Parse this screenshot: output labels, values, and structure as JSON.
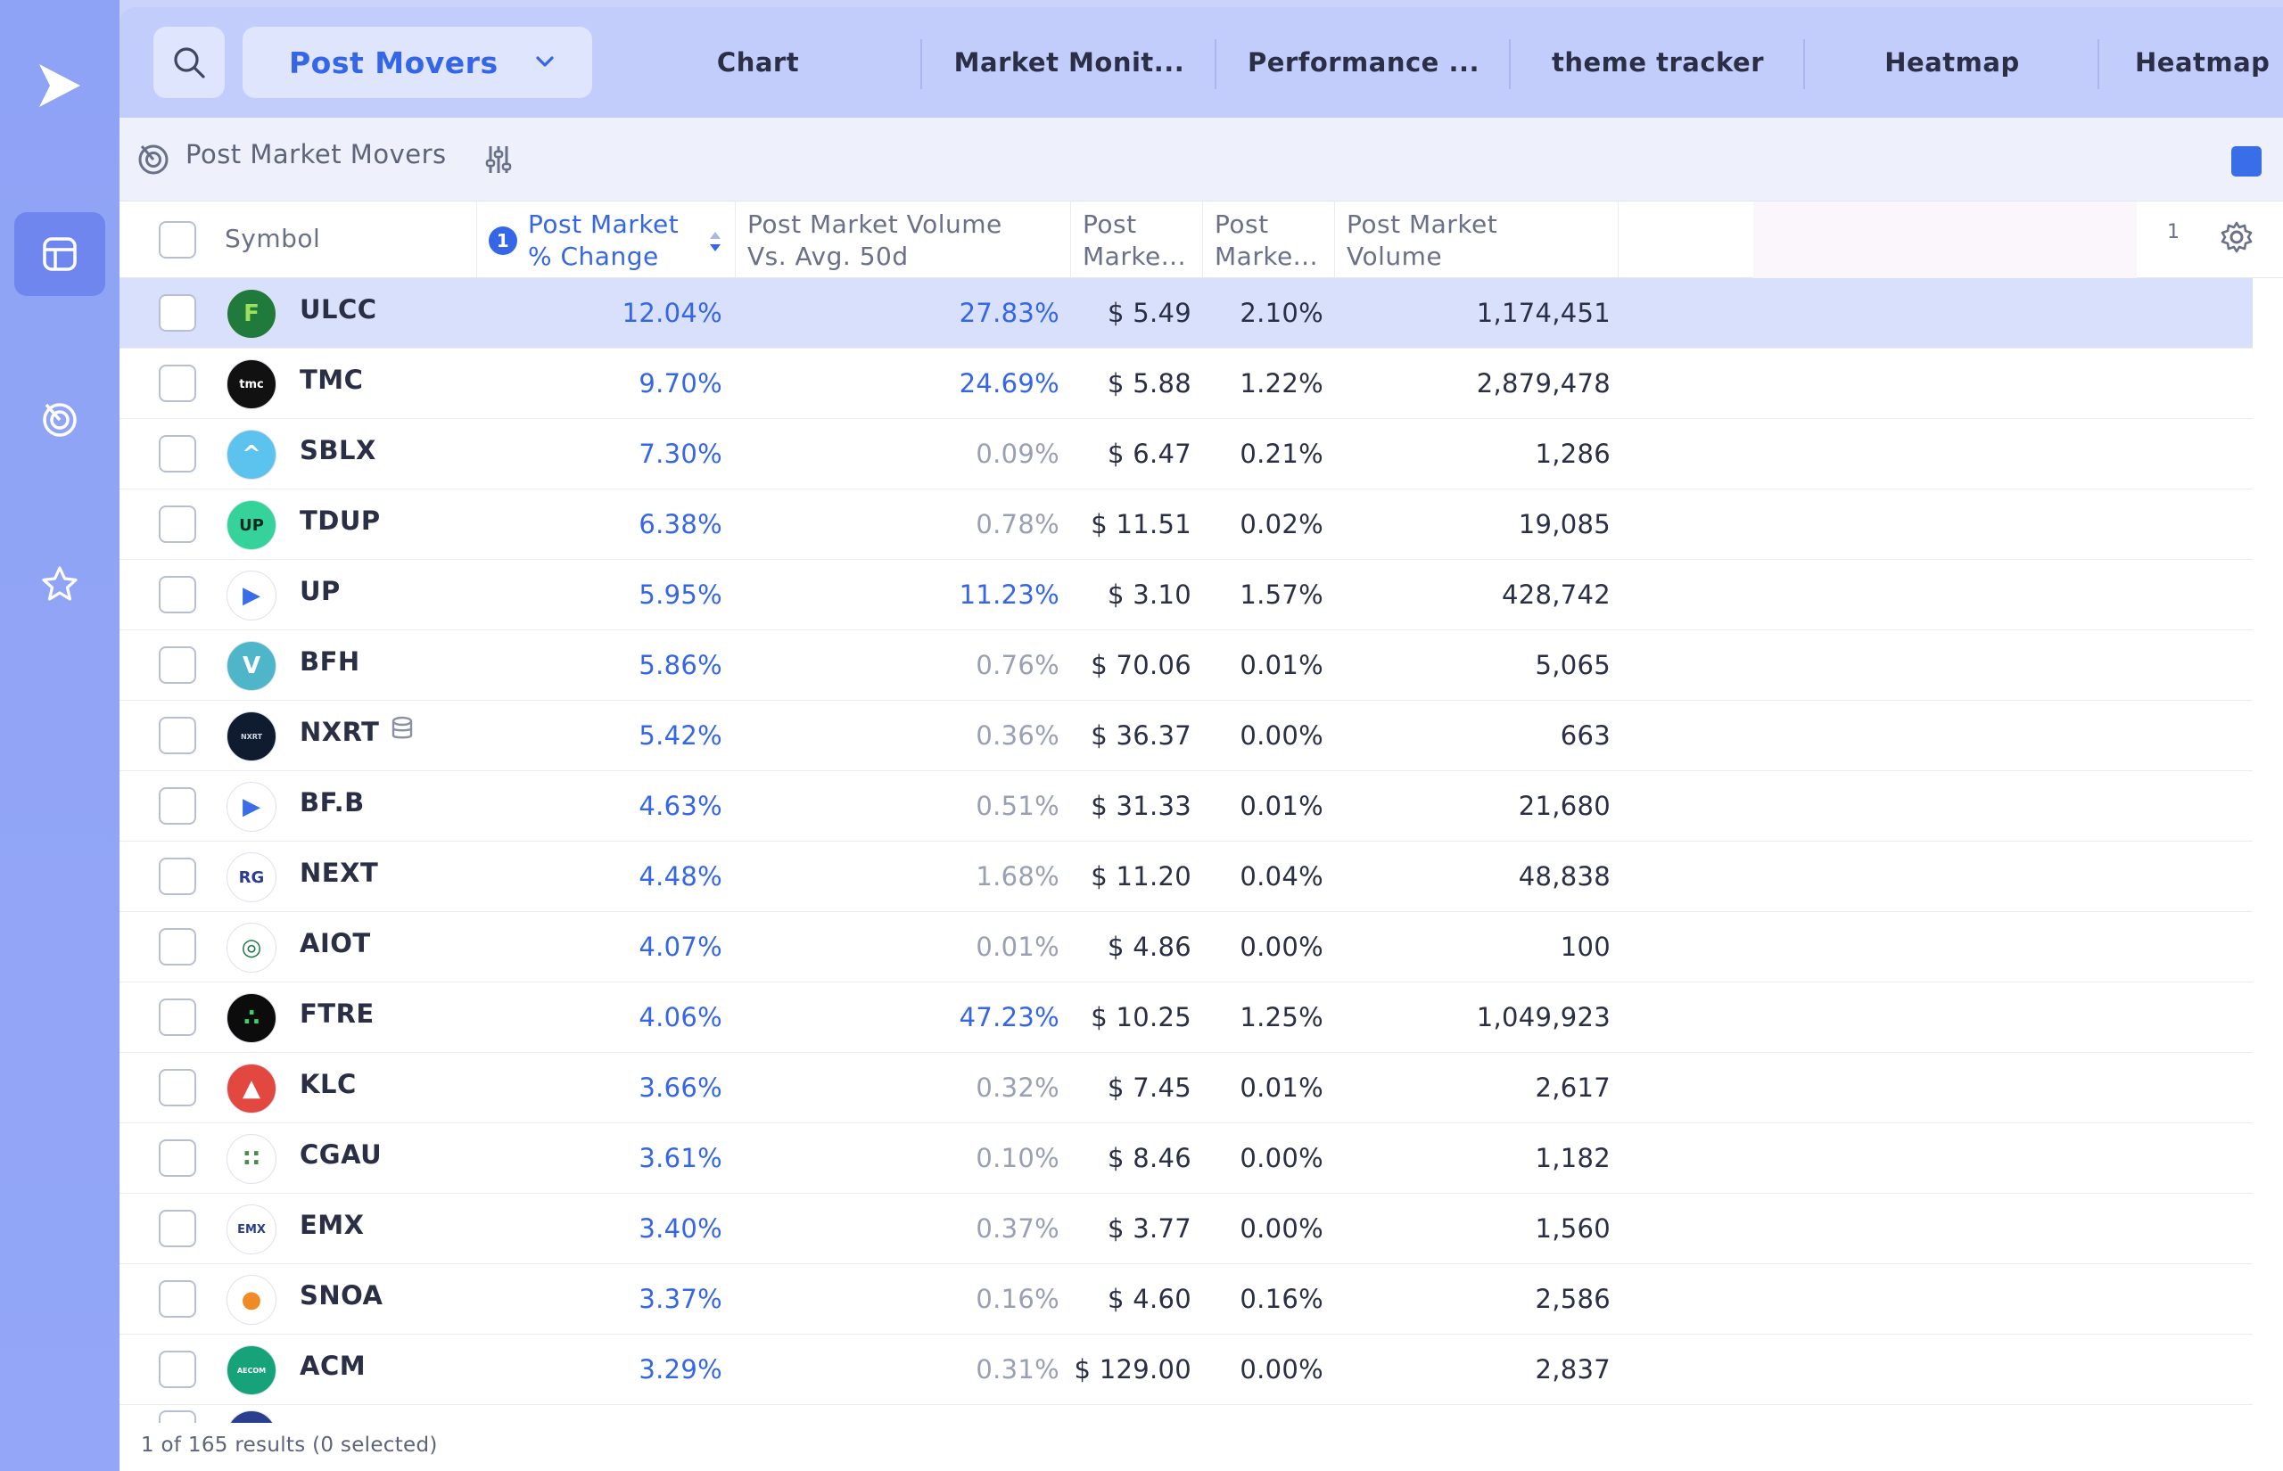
{
  "sidebar": {
    "icons": [
      "logo-icon",
      "layout-icon",
      "radar-icon",
      "star-icon"
    ],
    "active": "layout-icon"
  },
  "topbar": {
    "view_label": "Post Movers",
    "tabs": [
      "Chart",
      "Market Monit...",
      "Performance ...",
      "theme tracker",
      "Heatmap",
      "Heatmap"
    ]
  },
  "panel": {
    "title": "Post Market Movers"
  },
  "table": {
    "headers": {
      "symbol": "Symbol",
      "change_1": "Post Market",
      "change_2": "% Change",
      "sort_index": "1",
      "volavg_1": "Post Market Volume",
      "volavg_2": "Vs. Avg. 50d",
      "price_1": "Post",
      "price_2": "Marke...",
      "pct_1": "Post",
      "pct_2": "Marke...",
      "pvol_1": "Post Market",
      "pvol_2": "Volume"
    },
    "page": "1",
    "rows": [
      {
        "symbol": "ULCC",
        "change": "12.04%",
        "vol_avg": "27.83%",
        "vol_hi": true,
        "price": "$ 5.49",
        "pct": "2.10%",
        "volume": "1,174,451",
        "logo_text": "F",
        "logo_bg": "#1f7a3c",
        "logo_fg": "#9be15d"
      },
      {
        "symbol": "TMC",
        "change": "9.70%",
        "vol_avg": "24.69%",
        "vol_hi": true,
        "price": "$ 5.88",
        "pct": "1.22%",
        "volume": "2,879,478",
        "logo_text": "tmc",
        "logo_bg": "#111111",
        "logo_fg": "#ffffff"
      },
      {
        "symbol": "SBLX",
        "change": "7.30%",
        "vol_avg": "0.09%",
        "vol_hi": false,
        "price": "$ 6.47",
        "pct": "0.21%",
        "volume": "1,286",
        "logo_text": "^",
        "logo_bg": "#5cc3ef",
        "logo_fg": "#ffffff"
      },
      {
        "symbol": "TDUP",
        "change": "6.38%",
        "vol_avg": "0.78%",
        "vol_hi": false,
        "price": "$ 11.51",
        "pct": "0.02%",
        "volume": "19,085",
        "logo_text": "UP",
        "logo_bg": "#35d39a",
        "logo_fg": "#0b2a1f"
      },
      {
        "symbol": "UP",
        "change": "5.95%",
        "vol_avg": "11.23%",
        "vol_hi": true,
        "price": "$ 3.10",
        "pct": "1.57%",
        "volume": "428,742",
        "logo_text": "▶",
        "logo_bg": "#ffffff",
        "logo_fg": "#3a6ee8"
      },
      {
        "symbol": "BFH",
        "change": "5.86%",
        "vol_avg": "0.76%",
        "vol_hi": false,
        "price": "$ 70.06",
        "pct": "0.01%",
        "volume": "5,065",
        "logo_text": "V",
        "logo_bg": "#4fb6c9",
        "logo_fg": "#ffffff"
      },
      {
        "symbol": "NXRT",
        "change": "5.42%",
        "vol_avg": "0.36%",
        "vol_hi": false,
        "price": "$ 36.37",
        "pct": "0.00%",
        "volume": "663",
        "logo_text": "NXRT",
        "logo_bg": "#0f1b2e",
        "logo_fg": "#cfd6e4"
      },
      {
        "symbol": "BF.B",
        "change": "4.63%",
        "vol_avg": "0.51%",
        "vol_hi": false,
        "price": "$ 31.33",
        "pct": "0.01%",
        "volume": "21,680",
        "logo_text": "▶",
        "logo_bg": "#ffffff",
        "logo_fg": "#3a6ee8"
      },
      {
        "symbol": "NEXT",
        "change": "4.48%",
        "vol_avg": "1.68%",
        "vol_hi": false,
        "price": "$ 11.20",
        "pct": "0.04%",
        "volume": "48,838",
        "logo_text": "RG",
        "logo_bg": "#ffffff",
        "logo_fg": "#2b3d8f"
      },
      {
        "symbol": "AIOT",
        "change": "4.07%",
        "vol_avg": "0.01%",
        "vol_hi": false,
        "price": "$ 4.86",
        "pct": "0.00%",
        "volume": "100",
        "logo_text": "◎",
        "logo_bg": "#ffffff",
        "logo_fg": "#1b7a4a"
      },
      {
        "symbol": "FTRE",
        "change": "4.06%",
        "vol_avg": "47.23%",
        "vol_hi": true,
        "price": "$ 10.25",
        "pct": "1.25%",
        "volume": "1,049,923",
        "logo_text": "∴",
        "logo_bg": "#0c0c0c",
        "logo_fg": "#38d36b"
      },
      {
        "symbol": "KLC",
        "change": "3.66%",
        "vol_avg": "0.32%",
        "vol_hi": false,
        "price": "$ 7.45",
        "pct": "0.01%",
        "volume": "2,617",
        "logo_text": "▲",
        "logo_bg": "#e2483f",
        "logo_fg": "#ffffff"
      },
      {
        "symbol": "CGAU",
        "change": "3.61%",
        "vol_avg": "0.10%",
        "vol_hi": false,
        "price": "$ 8.46",
        "pct": "0.00%",
        "volume": "1,182",
        "logo_text": "∷",
        "logo_bg": "#ffffff",
        "logo_fg": "#4a8a4a"
      },
      {
        "symbol": "EMX",
        "change": "3.40%",
        "vol_avg": "0.37%",
        "vol_hi": false,
        "price": "$ 3.77",
        "pct": "0.00%",
        "volume": "1,560",
        "logo_text": "EMX",
        "logo_bg": "#ffffff",
        "logo_fg": "#2b3d8f"
      },
      {
        "symbol": "SNOA",
        "change": "3.37%",
        "vol_avg": "0.16%",
        "vol_hi": false,
        "price": "$ 4.60",
        "pct": "0.16%",
        "volume": "2,586",
        "logo_text": "●",
        "logo_bg": "#ffffff",
        "logo_fg": "#f08a24"
      },
      {
        "symbol": "ACM",
        "change": "3.29%",
        "vol_avg": "0.31%",
        "vol_hi": false,
        "price": "$ 129.00",
        "pct": "0.00%",
        "volume": "2,837",
        "logo_text": "AECOM",
        "logo_bg": "#17a37a",
        "logo_fg": "#ffffff"
      }
    ]
  },
  "footer": "1 of 165 results (0 selected)",
  "colors": {
    "accent": "#3566e8",
    "sidebar": "#8fa3f6",
    "topbar": "#c3cdfb",
    "selected_row": "#d9e0fc"
  }
}
